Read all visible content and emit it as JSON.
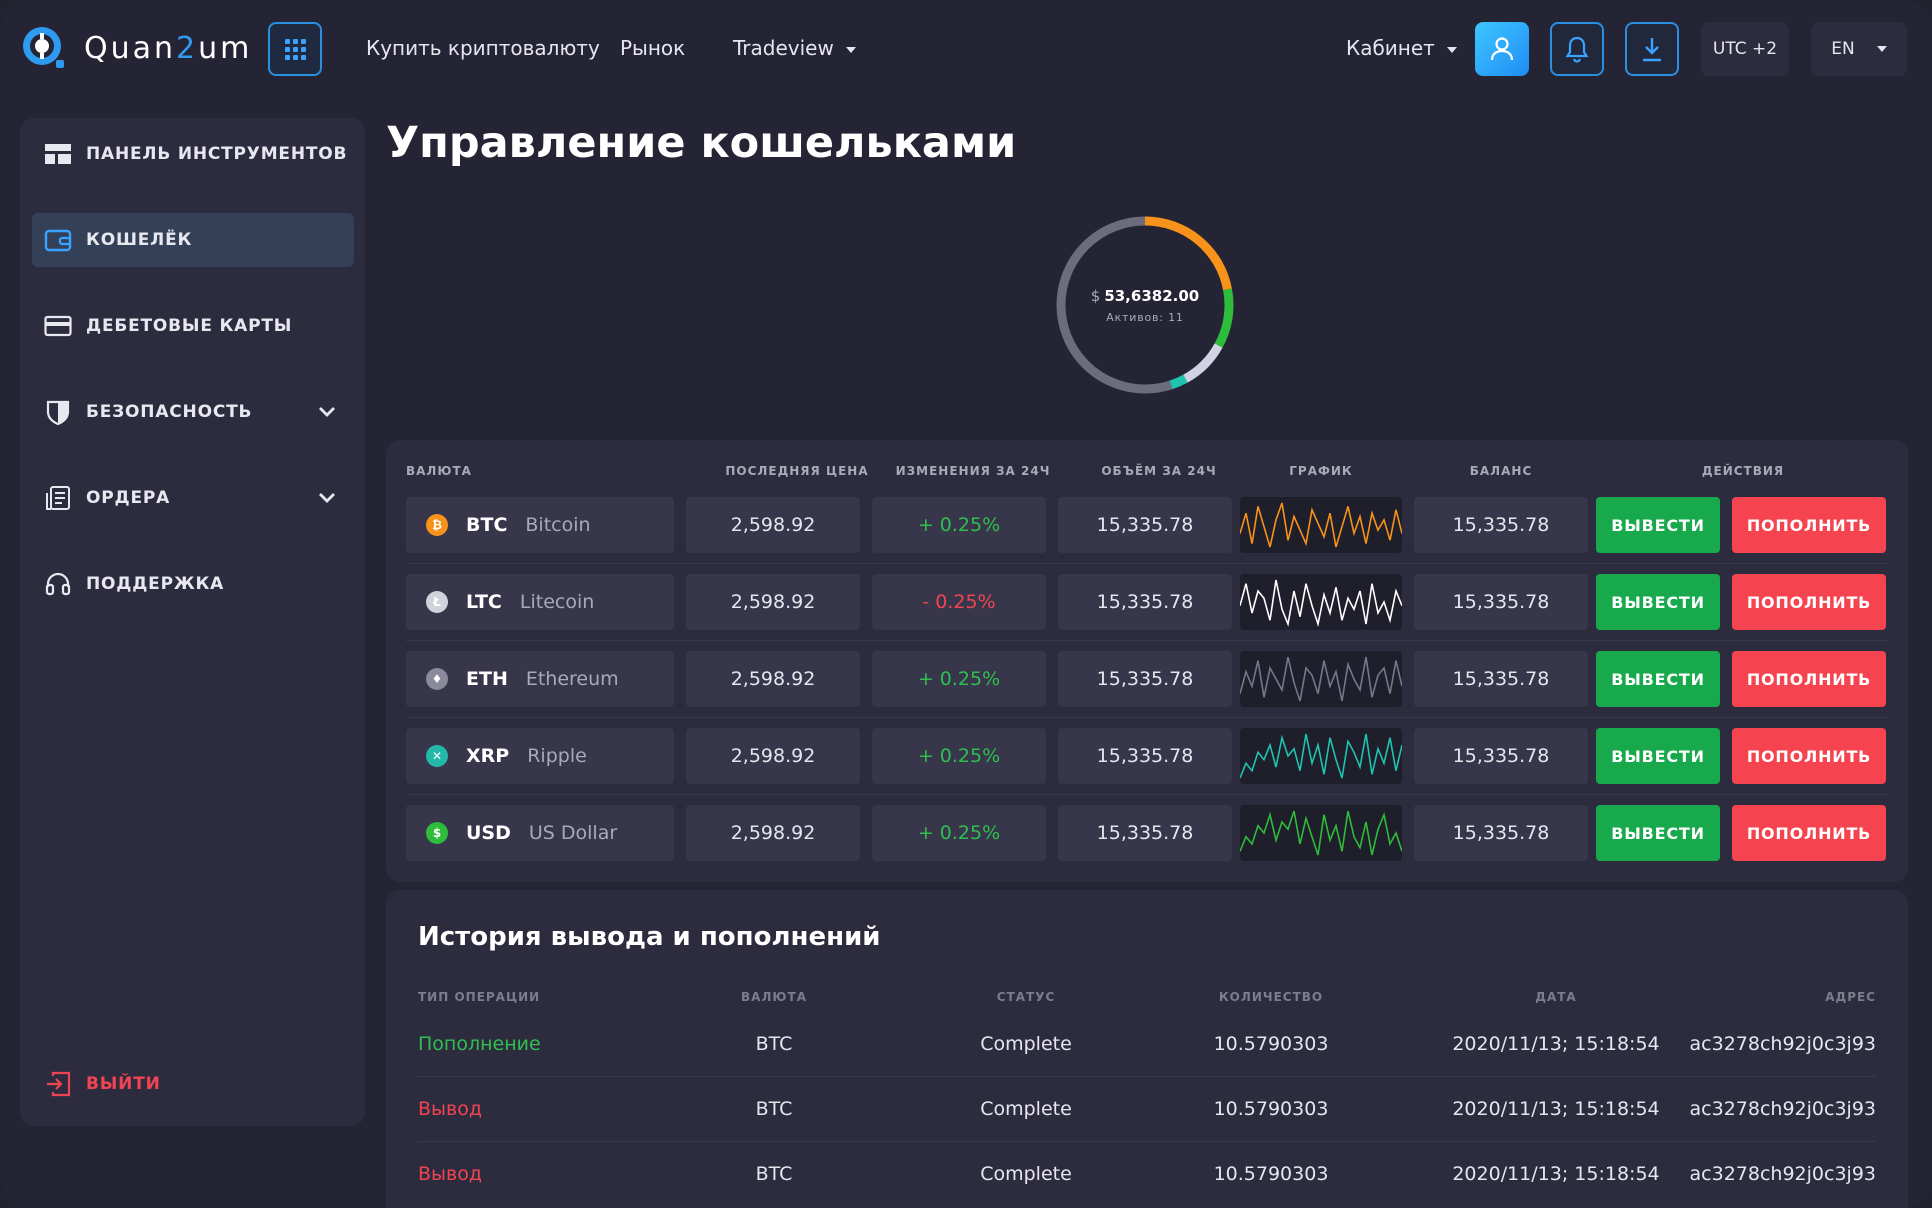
{
  "header": {
    "logo_prefix": "Quan",
    "logo_accent": "2",
    "logo_suffix": "um",
    "nav": [
      "Купить криптовалюту",
      "Рынок",
      "Tradeview"
    ],
    "cabinet_label": "Кабинет",
    "utc_label": "UTC +2",
    "lang_label": "EN"
  },
  "sidebar": {
    "items": [
      {
        "label": "Панель инструментов",
        "icon": "dashboard-icon"
      },
      {
        "label": "Кошелёк",
        "icon": "wallet-icon"
      },
      {
        "label": "Дебетовые карты",
        "icon": "credit-card-icon"
      },
      {
        "label": "Безопасность",
        "icon": "shield-icon"
      },
      {
        "label": "Ордера",
        "icon": "orders-icon"
      },
      {
        "label": "Поддержка",
        "icon": "headset-icon"
      }
    ],
    "logout_label": "Выйти"
  },
  "page": {
    "title": "Управление кошельками"
  },
  "portfolio": {
    "currency_symbol": "$",
    "total": "53,6382.00",
    "assets_label": "Активов: 11",
    "segments": [
      {
        "name": "orange",
        "color": "#f7931a",
        "fraction": 0.22
      },
      {
        "name": "green",
        "color": "#2dbd3a",
        "fraction": 0.11
      },
      {
        "name": "light",
        "color": "#cfd3e3",
        "fraction": 0.09
      },
      {
        "name": "teal",
        "color": "#1ec4b0",
        "fraction": 0.03
      },
      {
        "name": "grey",
        "color": "#6d6c7d",
        "fraction": 0.55
      }
    ]
  },
  "wallet_table": {
    "headers": [
      "Валюта",
      "Последняя цена",
      "Изменения за 24ч",
      "Объём за 24ч",
      "График",
      "Баланс",
      "Действия"
    ],
    "withdraw_label": "Вывести",
    "deposit_label": "Пополнить",
    "rows": [
      {
        "code": "BTC",
        "name": "Bitcoin",
        "icon_color": "#f7931a",
        "icon_glyph": "₿",
        "price": "2,598.92",
        "change": "+ 0.25%",
        "change_dir": "pos",
        "volume": "15,335.78",
        "balance": "15,335.78",
        "spark_color": "#f7931a",
        "spark": [
          18,
          30,
          12,
          34,
          22,
          10,
          26,
          36,
          14,
          28,
          20,
          12,
          32,
          24,
          16,
          30,
          10,
          22,
          34,
          18,
          28,
          12,
          30,
          20,
          26,
          14,
          32,
          18
        ]
      },
      {
        "code": "LTC",
        "name": "Litecoin",
        "icon_color": "#d0d3dc",
        "icon_glyph": "Ł",
        "price": "2,598.92",
        "change": "- 0.25%",
        "change_dir": "neg",
        "volume": "15,335.78",
        "balance": "15,335.78",
        "spark_color": "#ffffff",
        "spark": [
          22,
          34,
          18,
          30,
          26,
          14,
          36,
          20,
          12,
          30,
          16,
          34,
          22,
          12,
          28,
          18,
          32,
          14,
          26,
          20,
          30,
          12,
          34,
          18,
          24,
          14,
          30,
          22
        ]
      },
      {
        "code": "ETH",
        "name": "Ethereum",
        "icon_color": "#8a8a9a",
        "icon_glyph": "♦",
        "price": "2,598.92",
        "change": "+ 0.25%",
        "change_dir": "pos",
        "volume": "15,335.78",
        "balance": "15,335.78",
        "spark_color": "#77768a",
        "spark": [
          16,
          28,
          20,
          34,
          14,
          30,
          24,
          18,
          36,
          22,
          12,
          30,
          26,
          16,
          34,
          20,
          28,
          12,
          32,
          24,
          18,
          36,
          14,
          26,
          30,
          16,
          34,
          20
        ]
      },
      {
        "code": "XRP",
        "name": "Ripple",
        "icon_color": "#23b8a8",
        "icon_glyph": "✕",
        "price": "2,598.92",
        "change": "+ 0.25%",
        "change_dir": "pos",
        "volume": "15,335.78",
        "balance": "15,335.78",
        "spark_color": "#1ec4b0",
        "spark": [
          12,
          20,
          16,
          26,
          22,
          30,
          18,
          34,
          24,
          28,
          16,
          36,
          20,
          30,
          14,
          34,
          22,
          12,
          32,
          26,
          18,
          36,
          14,
          28,
          20,
          34,
          16,
          30
        ]
      },
      {
        "code": "USD",
        "name": "US Dollar",
        "icon_color": "#2dbd3a",
        "icon_glyph": "$",
        "price": "2,598.92",
        "change": "+ 0.25%",
        "change_dir": "pos",
        "volume": "15,335.78",
        "balance": "15,335.78",
        "spark_color": "#2dbd3a",
        "spark": [
          14,
          22,
          18,
          28,
          24,
          34,
          20,
          30,
          26,
          36,
          18,
          32,
          22,
          12,
          34,
          20,
          28,
          14,
          36,
          22,
          16,
          30,
          12,
          26,
          34,
          18,
          24,
          14
        ]
      }
    ]
  },
  "history": {
    "title": "История вывода и пополнений",
    "headers": [
      "Тип операции",
      "Валюта",
      "Статус",
      "Количество",
      "Дата",
      "Адрес"
    ],
    "rows": [
      {
        "type": "Пополнение",
        "kind": "in",
        "currency": "BTC",
        "status": "Complete",
        "amount": "10.5790303",
        "date": "2020/11/13; 15:18:54",
        "address": "ac3278ch92j0c3j93"
      },
      {
        "type": "Вывод",
        "kind": "out",
        "currency": "BTC",
        "status": "Complete",
        "amount": "10.5790303",
        "date": "2020/11/13; 15:18:54",
        "address": "ac3278ch92j0c3j93"
      },
      {
        "type": "Вывод",
        "kind": "out",
        "currency": "BTC",
        "status": "Complete",
        "amount": "10.5790303",
        "date": "2020/11/13; 15:18:54",
        "address": "ac3278ch92j0c3j93"
      }
    ]
  }
}
